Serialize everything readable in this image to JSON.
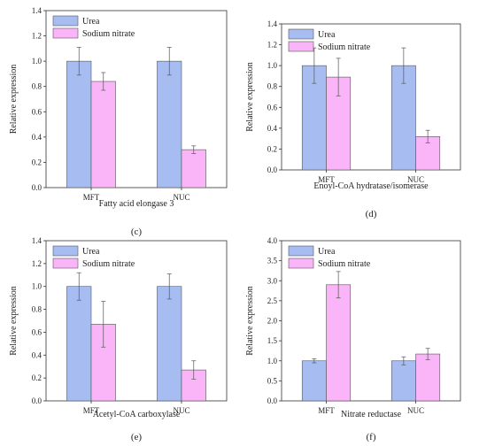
{
  "colors": {
    "urea": "#a7bdf2",
    "sodium_nitrate": "#f9b5f7",
    "axis": "#333333",
    "bar_edge": "#555555",
    "error": "#555555"
  },
  "chart_data": [
    {
      "id": "c",
      "type": "bar",
      "panel_label": "(c)",
      "title": "",
      "xlabel": "Fatty acid elongase 3",
      "ylabel": "Relative expression",
      "ylim": [
        0,
        1.4
      ],
      "yticks": [
        "0.0",
        "0.2",
        "0.4",
        "0.6",
        "0.8",
        "1.0",
        "1.2",
        "1.4"
      ],
      "categories": [
        "MFT",
        "NUC"
      ],
      "legend_position": "top-left",
      "series": [
        {
          "name": "Urea",
          "values": [
            1.0,
            1.0
          ],
          "errors": [
            0.11,
            0.11
          ]
        },
        {
          "name": "Sodium nitrate",
          "values": [
            0.84,
            0.3
          ],
          "errors": [
            0.07,
            0.03
          ]
        }
      ]
    },
    {
      "id": "d",
      "type": "bar",
      "panel_label": "(d)",
      "title": "",
      "xlabel": "Enoyl-CoA hydratase/isomerase",
      "ylabel": "Relative expression",
      "ylim": [
        0,
        1.4
      ],
      "yticks": [
        "0.0",
        "0.2",
        "0.4",
        "0.6",
        "0.8",
        "1.0",
        "1.2",
        "1.4"
      ],
      "categories": [
        "MFT",
        "NUC"
      ],
      "legend_position": "top-left",
      "series": [
        {
          "name": "Urea",
          "values": [
            1.0,
            1.0
          ],
          "errors": [
            0.17,
            0.17
          ]
        },
        {
          "name": "Sodium nitrate",
          "values": [
            0.89,
            0.32
          ],
          "errors": [
            0.18,
            0.06
          ]
        }
      ]
    },
    {
      "id": "e",
      "type": "bar",
      "panel_label": "(e)",
      "title": "",
      "xlabel": "Acetyl-CoA carboxylase",
      "ylabel": "Relative expression",
      "ylim": [
        0,
        1.4
      ],
      "yticks": [
        "0.0",
        "0.2",
        "0.4",
        "0.6",
        "0.8",
        "1.0",
        "1.2",
        "1.4"
      ],
      "categories": [
        "MFT",
        "NUC"
      ],
      "legend_position": "top-left",
      "series": [
        {
          "name": "Urea",
          "values": [
            1.0,
            1.0
          ],
          "errors": [
            0.12,
            0.11
          ]
        },
        {
          "name": "Sodium nitrate",
          "values": [
            0.67,
            0.27
          ],
          "errors": [
            0.2,
            0.08
          ]
        }
      ]
    },
    {
      "id": "f",
      "type": "bar",
      "panel_label": "(f)",
      "title": "",
      "xlabel": "Nitrate reductase",
      "ylabel": "Relative expression",
      "ylim": [
        0,
        4.0
      ],
      "yticks": [
        "0.0",
        "0.5",
        "1.0",
        "1.5",
        "2.0",
        "2.5",
        "3.0",
        "3.5",
        "4.0"
      ],
      "categories": [
        "MFT",
        "NUC"
      ],
      "legend_position": "top-left",
      "series": [
        {
          "name": "Urea",
          "values": [
            1.0,
            1.0
          ],
          "errors": [
            0.05,
            0.1
          ]
        },
        {
          "name": "Sodium nitrate",
          "values": [
            2.9,
            1.17
          ],
          "errors": [
            0.33,
            0.14
          ]
        }
      ]
    }
  ]
}
